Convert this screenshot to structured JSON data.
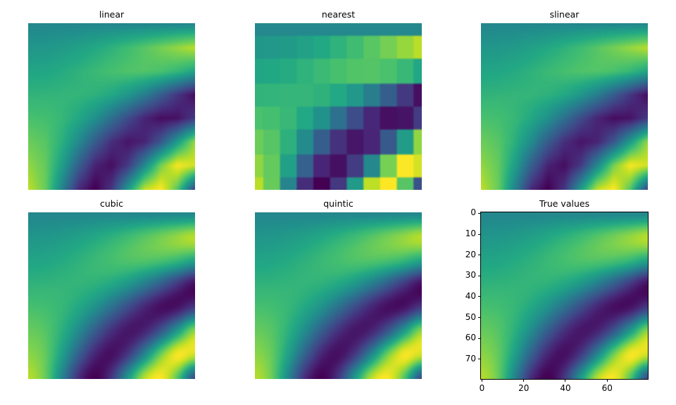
{
  "chart_data": [
    {
      "type": "heatmap",
      "title": "linear",
      "method": "linear",
      "axes_visible": false,
      "colormap": "viridis"
    },
    {
      "type": "heatmap",
      "title": "nearest",
      "method": "nearest",
      "axes_visible": false,
      "colormap": "viridis"
    },
    {
      "type": "heatmap",
      "title": "slinear",
      "method": "linear",
      "axes_visible": false,
      "colormap": "viridis"
    },
    {
      "type": "heatmap",
      "title": "cubic",
      "method": "cubic",
      "axes_visible": false,
      "colormap": "viridis"
    },
    {
      "type": "heatmap",
      "title": "quintic",
      "method": "cubic",
      "axes_visible": false,
      "colormap": "viridis"
    },
    {
      "type": "heatmap",
      "title": "True values",
      "method": "cubic",
      "axes_visible": true,
      "colormap": "viridis",
      "image_size": [
        80,
        80
      ],
      "xticks": [
        0,
        20,
        40,
        60
      ],
      "yticks": [
        0,
        10,
        20,
        30,
        40,
        50,
        60,
        70
      ],
      "y_inverted": true
    }
  ],
  "grid_values": [
    [
      0,
      0,
      0,
      0,
      0,
      0,
      0,
      0,
      0,
      0,
      0
    ],
    [
      0.429,
      0.464,
      0.567,
      0.736,
      0.964,
      1.242,
      1.562,
      1.911,
      2.277,
      2.645,
      2.999
    ],
    [
      0.857,
      0.905,
      1.041,
      1.242,
      1.47,
      1.681,
      1.823,
      1.85,
      1.723,
      1.41,
      0.882
    ],
    [
      1.286,
      1.304,
      1.34,
      1.341,
      1.235,
      0.954,
      0.457,
      -0.265,
      -1.15,
      -2.092,
      -2.936
    ],
    [
      1.714,
      1.64,
      1.399,
      0.947,
      0.261,
      -0.645,
      -1.611,
      -2.467,
      -2.949,
      -2.834,
      -2.011
    ],
    [
      2.143,
      1.895,
      1.179,
      0.092,
      -1.167,
      -2.246,
      -2.798,
      -2.505,
      -1.286,
      0.587,
      2.567
    ],
    [
      2.571,
      2.053,
      0.672,
      -1.075,
      -2.5,
      -2.926,
      -2.008,
      0.009,
      2.287,
      3.692,
      3.285
    ],
    [
      3.0,
      2.1,
      -0.097,
      -2.328,
      -3.221,
      -2.099,
      0.513,
      3.035,
      3.73,
      1.891,
      -1.497
    ]
  ]
}
